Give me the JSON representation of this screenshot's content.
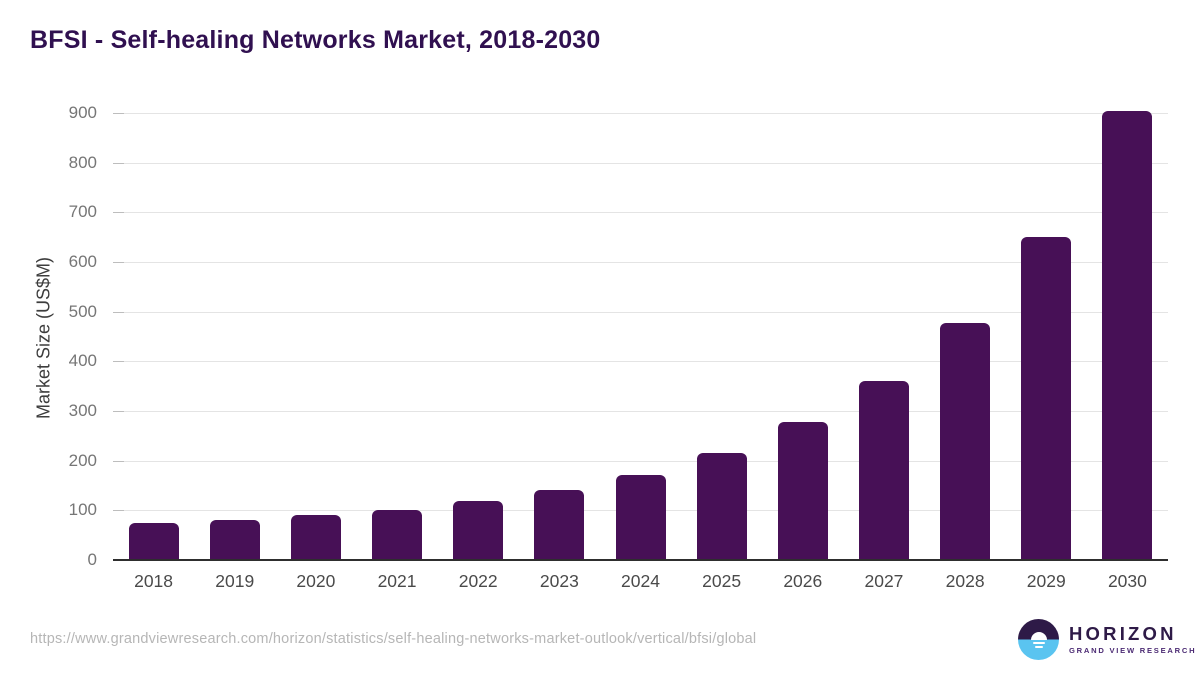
{
  "title": "BFSI - Self-healing Networks Market, 2018-2030",
  "chart_data": {
    "type": "bar",
    "title": "BFSI - Self-healing Networks Market, 2018-2030",
    "categories": [
      "2018",
      "2019",
      "2020",
      "2021",
      "2022",
      "2023",
      "2024",
      "2025",
      "2026",
      "2027",
      "2028",
      "2029",
      "2030"
    ],
    "values": [
      75,
      81,
      90,
      101,
      118,
      140,
      172,
      216,
      277,
      360,
      477,
      650,
      905
    ],
    "xlabel": "",
    "ylabel": "Market Size (US$M)",
    "ylim": [
      0,
      950
    ],
    "yticks": [
      0,
      100,
      200,
      300,
      400,
      500,
      600,
      700,
      800,
      900
    ],
    "grid": true,
    "legend": "none",
    "bar_color": "#471056"
  },
  "footer": {
    "source_url": "https://www.grandviewresearch.com/horizon/statistics/self-healing-networks-market-outlook/vertical/bfsi/global",
    "logo": {
      "icon": "horizon-sun-over-water-icon",
      "name": "HORIZON",
      "subtitle": "GRAND VIEW RESEARCH"
    }
  },
  "colors": {
    "background": "#ffffff",
    "title_color": "#301050",
    "bar_color": "#471056",
    "grid_color": "#e4e4e4",
    "tick_color": "#bdbdbd",
    "axis_line_color": "#2e2e2e",
    "axis_title_color": "#3d3d3d",
    "ytick_color": "#767676",
    "xtick_color": "#4a4a4a",
    "url_color": "#b6b6b6",
    "logo_purple": "#2e1a47",
    "logo_blue": "#5ac4f0",
    "logo_sub_color": "#4b2a73"
  }
}
